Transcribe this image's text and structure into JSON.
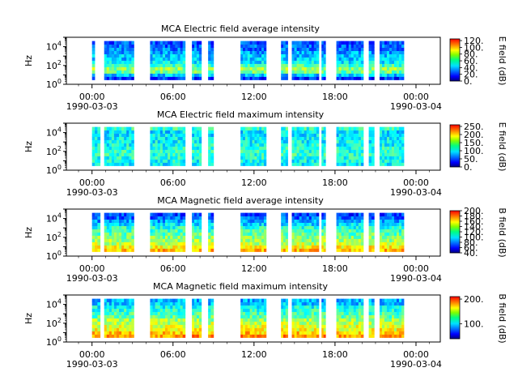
{
  "chart_data": [
    {
      "type": "heatmap",
      "title": "MCA  Electric field average intensity",
      "ylabel": "Hz",
      "yscale": "log",
      "ylim": [
        1,
        100000
      ],
      "y_ticks": [
        {
          "value": 1,
          "base": "10",
          "exp": "0"
        },
        {
          "value": 100,
          "base": "10",
          "exp": "2"
        },
        {
          "value": 10000,
          "base": "10",
          "exp": "4"
        }
      ],
      "x_tick_labels": [
        "00:00",
        "06:00",
        "12:00",
        "18:00",
        "00:00"
      ],
      "x_hours": [
        0,
        6,
        12,
        18,
        24
      ],
      "date_start": "1990-03-03",
      "date_end": "1990-03-04",
      "colorbar": {
        "label": "E field (dB)",
        "range": [
          0,
          125
        ],
        "ticks": [
          "120.",
          "100.",
          "80.",
          "60.",
          "40.",
          "20.",
          "0."
        ],
        "tick_values": [
          120,
          100,
          80,
          60,
          40,
          20,
          0
        ]
      },
      "data_intervals_hours": [
        [
          0.0,
          0.2
        ],
        [
          0.9,
          3.1
        ],
        [
          4.3,
          6.9
        ],
        [
          7.4,
          8.1
        ],
        [
          8.6,
          9.0
        ],
        [
          11.0,
          12.9
        ],
        [
          14.0,
          14.5
        ],
        [
          14.8,
          16.8
        ],
        [
          17.0,
          17.3
        ],
        [
          18.1,
          20.1
        ],
        [
          20.5,
          20.9
        ],
        [
          21.3,
          23.1
        ]
      ],
      "intensity_by_band": [
        20,
        40,
        60,
        65,
        55,
        45,
        40,
        40,
        35,
        30,
        28,
        25
      ],
      "band_freq_hz": [
        3,
        8,
        20,
        50,
        120,
        300,
        800,
        2000,
        5000,
        10000,
        20000,
        40000
      ]
    },
    {
      "type": "heatmap",
      "title": "MCA  Electric field maximum intensity",
      "ylabel": "Hz",
      "yscale": "log",
      "ylim": [
        1,
        100000
      ],
      "y_ticks": [
        {
          "value": 1,
          "base": "10",
          "exp": "0"
        },
        {
          "value": 100,
          "base": "10",
          "exp": "2"
        },
        {
          "value": 10000,
          "base": "10",
          "exp": "4"
        }
      ],
      "x_tick_labels": [
        "00:00",
        "06:00",
        "12:00",
        "18:00",
        "00:00"
      ],
      "x_hours": [
        0,
        6,
        12,
        18,
        24
      ],
      "date_start": "1990-03-03",
      "date_end": "1990-03-04",
      "colorbar": {
        "label": "E field (dB)",
        "range": [
          0,
          260
        ],
        "ticks": [
          "250.",
          "200.",
          "150.",
          "100.",
          "50.",
          "0."
        ],
        "tick_values": [
          250,
          200,
          150,
          100,
          50,
          0
        ]
      },
      "data_intervals_hours": [
        [
          0.0,
          0.6
        ],
        [
          0.9,
          3.1
        ],
        [
          4.3,
          6.9
        ],
        [
          7.4,
          8.1
        ],
        [
          8.6,
          9.0
        ],
        [
          11.0,
          12.9
        ],
        [
          14.0,
          14.5
        ],
        [
          14.8,
          16.8
        ],
        [
          17.0,
          17.3
        ],
        [
          18.1,
          20.1
        ],
        [
          20.5,
          20.9
        ],
        [
          21.3,
          23.1
        ]
      ],
      "intensity_by_band": [
        95,
        100,
        105,
        110,
        108,
        105,
        100,
        98,
        95,
        92,
        90,
        110
      ]
    },
    {
      "type": "heatmap",
      "title": "MCA  Magnetic field average intensity",
      "ylabel": "Hz",
      "yscale": "log",
      "ylim": [
        1,
        100000
      ],
      "y_ticks": [
        {
          "value": 1,
          "base": "10",
          "exp": "0"
        },
        {
          "value": 100,
          "base": "10",
          "exp": "2"
        },
        {
          "value": 10000,
          "base": "10",
          "exp": "4"
        }
      ],
      "x_tick_labels": [
        "00:00",
        "06:00",
        "12:00",
        "18:00",
        "00:00"
      ],
      "x_hours": [
        0,
        6,
        12,
        18,
        24
      ],
      "date_start": "1990-03-03",
      "date_end": "1990-03-04",
      "colorbar": {
        "label": "B field (dB)",
        "range": [
          40,
          200
        ],
        "ticks": [
          "200.",
          "180.",
          "160.",
          "140.",
          "120.",
          "100.",
          "80.",
          "60.",
          "40."
        ],
        "tick_values": [
          200,
          180,
          160,
          140,
          120,
          100,
          80,
          60,
          40
        ]
      },
      "data_intervals_hours": [
        [
          0.0,
          0.6
        ],
        [
          0.9,
          3.1
        ],
        [
          4.3,
          6.9
        ],
        [
          7.4,
          8.1
        ],
        [
          8.6,
          9.0
        ],
        [
          11.0,
          12.9
        ],
        [
          14.0,
          14.5
        ],
        [
          14.8,
          16.8
        ],
        [
          17.0,
          17.3
        ],
        [
          18.1,
          20.1
        ],
        [
          20.5,
          20.9
        ],
        [
          21.3,
          23.1
        ]
      ],
      "intensity_by_band": [
        150,
        140,
        130,
        125,
        120,
        115,
        110,
        105,
        95,
        85,
        75,
        70
      ]
    },
    {
      "type": "heatmap",
      "title": "MCA  Magnetic field maximum intensity",
      "ylabel": "Hz",
      "yscale": "log",
      "ylim": [
        1,
        100000
      ],
      "y_ticks": [
        {
          "value": 1,
          "base": "10",
          "exp": "0"
        },
        {
          "value": 100,
          "base": "10",
          "exp": "2"
        },
        {
          "value": 10000,
          "base": "10",
          "exp": "4"
        }
      ],
      "x_tick_labels": [
        "00:00",
        "06:00",
        "12:00",
        "18:00",
        "00:00"
      ],
      "x_hours": [
        0,
        6,
        12,
        18,
        24
      ],
      "date_start": "1990-03-03",
      "date_end": "1990-03-04",
      "colorbar": {
        "label": "B field (dB)",
        "range": [
          40,
          210
        ],
        "ticks": [
          "200.",
          "100."
        ],
        "tick_values": [
          200,
          100
        ]
      },
      "data_intervals_hours": [
        [
          0.0,
          0.6
        ],
        [
          0.9,
          3.1
        ],
        [
          4.3,
          6.9
        ],
        [
          7.4,
          8.1
        ],
        [
          8.6,
          9.0
        ],
        [
          11.0,
          12.9
        ],
        [
          14.0,
          14.5
        ],
        [
          14.8,
          16.8
        ],
        [
          17.0,
          17.3
        ],
        [
          18.1,
          20.1
        ],
        [
          20.5,
          20.9
        ],
        [
          21.3,
          23.1
        ]
      ],
      "intensity_by_band": [
        165,
        155,
        145,
        140,
        135,
        130,
        120,
        115,
        110,
        105,
        95,
        90
      ]
    }
  ]
}
